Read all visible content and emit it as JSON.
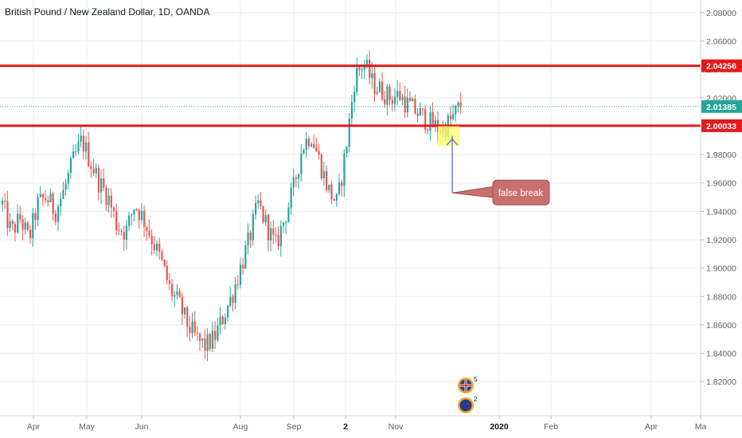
{
  "chart_data": {
    "type": "candlestick",
    "title": "British Pound / New Zealand Dollar, 1D, OANDA",
    "ylim": [
      1.81,
      2.085
    ],
    "y_ticks": [
      "2.08000",
      "2.06000",
      "2.04000",
      "2.02000",
      "2.00000",
      "1.98000",
      "1.96000",
      "1.94000",
      "1.92000",
      "1.90000",
      "1.88000",
      "1.86000",
      "1.84000",
      "1.82000"
    ],
    "x_ticks": [
      {
        "label": "Apr",
        "major": false
      },
      {
        "label": "May",
        "major": false
      },
      {
        "label": "Jun",
        "major": false
      },
      {
        "label": "Aug",
        "major": false
      },
      {
        "label": "Sep",
        "major": false
      },
      {
        "label": "2",
        "major": true
      },
      {
        "label": "Nov",
        "major": false
      },
      {
        "label": "2020",
        "major": true
      },
      {
        "label": "Feb",
        "major": false
      },
      {
        "label": "Apr",
        "major": false
      },
      {
        "label": "Ma",
        "major": false
      }
    ],
    "anchors": [
      1.945,
      1.925,
      1.935,
      1.92,
      1.945,
      1.95,
      1.94,
      1.955,
      1.975,
      1.99,
      1.975,
      1.96,
      1.95,
      1.93,
      1.925,
      1.945,
      1.935,
      1.92,
      1.905,
      1.885,
      1.875,
      1.86,
      1.85,
      1.845,
      1.85,
      1.865,
      1.88,
      1.9,
      1.92,
      1.945,
      1.93,
      1.915,
      1.935,
      1.955,
      1.985,
      1.995,
      1.975,
      1.955,
      1.945,
      1.985,
      2.035,
      2.045,
      2.03,
      2.025,
      2.02,
      2.022,
      2.015,
      2.01,
      2.005,
      2.0,
      1.998,
      2.005,
      2.015
    ],
    "levels": [
      {
        "label": "2.04256",
        "value": 2.04256,
        "color": "#e31a1c",
        "style": "solid"
      },
      {
        "label": "2.00033",
        "value": 2.00033,
        "color": "#e31a1c",
        "style": "solid"
      },
      {
        "label": "2.01385",
        "value": 2.01385,
        "color": "#26a69a",
        "style": "dotted"
      }
    ],
    "colors": {
      "up": "#26a69a",
      "down": "#ef5350",
      "grid": "#eceef2",
      "axis_text": "#5d606b"
    },
    "grid": true,
    "annotations": [
      {
        "type": "highlight",
        "color": "#ffff66",
        "y_range": [
          1.986,
          2.0
        ]
      },
      {
        "type": "callout",
        "text": "false break",
        "value": 1.953,
        "color": "#c9706f"
      },
      {
        "type": "marker",
        "value": 1.991
      }
    ],
    "events": [
      {
        "icon": "uk-flag-icon",
        "count": "5"
      },
      {
        "icon": "nz-flag-icon",
        "count": "2"
      }
    ]
  }
}
